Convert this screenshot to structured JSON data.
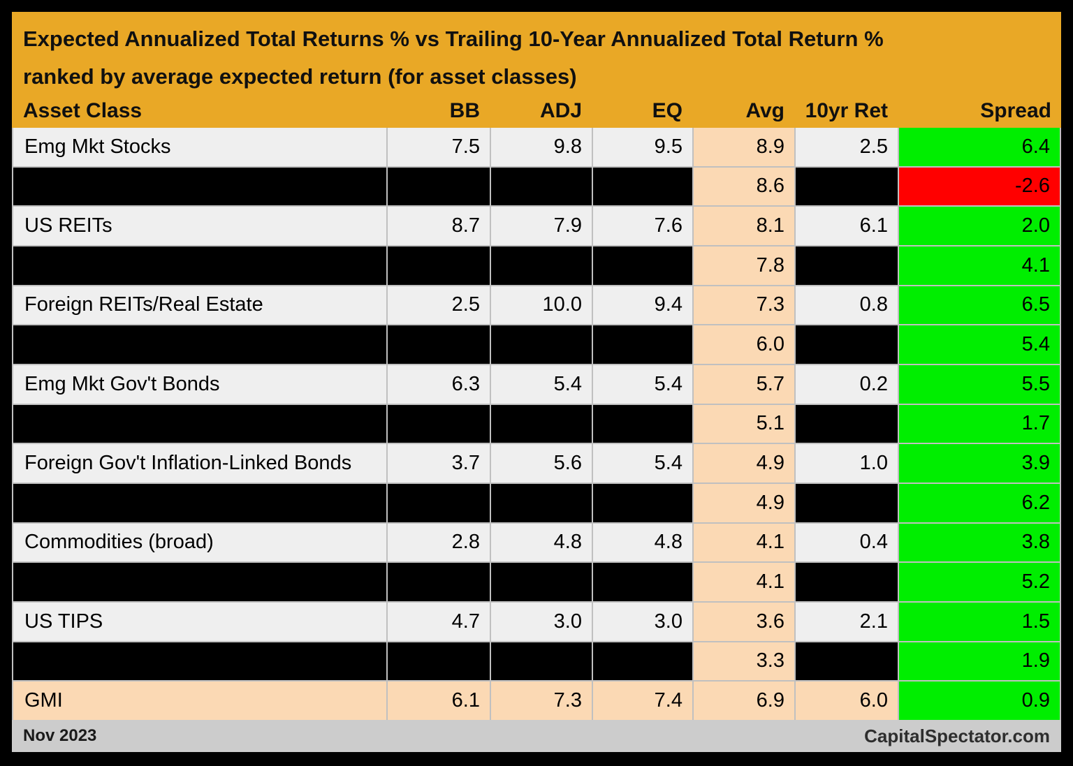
{
  "header": {
    "title_line1": "Expected Annualized Total Returns % vs Trailing 10-Year Annualized Total Return %",
    "title_line2": "ranked by average expected return (for asset classes)"
  },
  "table": {
    "columns": [
      "Asset Class",
      "BB",
      "ADJ",
      "EQ",
      "Avg",
      "10yr Ret",
      "Spread"
    ],
    "rows": [
      {
        "variant": "normal",
        "asset": "Emg Mkt Stocks",
        "bb": "7.5",
        "adj": "9.8",
        "eq": "9.5",
        "avg": "8.9",
        "ret10": "2.5",
        "spread": "6.4",
        "spread_variant": "green"
      },
      {
        "variant": "blackout",
        "asset": "",
        "bb": "",
        "adj": "",
        "eq": "",
        "avg": "8.6",
        "ret10": "",
        "spread": "-2.6",
        "spread_variant": "red"
      },
      {
        "variant": "normal",
        "asset": "US REITs",
        "bb": "8.7",
        "adj": "7.9",
        "eq": "7.6",
        "avg": "8.1",
        "ret10": "6.1",
        "spread": "2.0",
        "spread_variant": "green"
      },
      {
        "variant": "blackout",
        "asset": "",
        "bb": "",
        "adj": "",
        "eq": "",
        "avg": "7.8",
        "ret10": "",
        "spread": "4.1",
        "spread_variant": "green"
      },
      {
        "variant": "normal",
        "asset": "Foreign REITs/Real Estate",
        "bb": "2.5",
        "adj": "10.0",
        "eq": "9.4",
        "avg": "7.3",
        "ret10": "0.8",
        "spread": "6.5",
        "spread_variant": "green"
      },
      {
        "variant": "blackout",
        "asset": "",
        "bb": "",
        "adj": "",
        "eq": "",
        "avg": "6.0",
        "ret10": "",
        "spread": "5.4",
        "spread_variant": "green"
      },
      {
        "variant": "normal",
        "asset": "Emg Mkt Gov't Bonds",
        "bb": "6.3",
        "adj": "5.4",
        "eq": "5.4",
        "avg": "5.7",
        "ret10": "0.2",
        "spread": "5.5",
        "spread_variant": "green"
      },
      {
        "variant": "blackout",
        "asset": "",
        "bb": "",
        "adj": "",
        "eq": "",
        "avg": "5.1",
        "ret10": "",
        "spread": "1.7",
        "spread_variant": "green"
      },
      {
        "variant": "normal",
        "asset": "Foreign Gov't Inflation-Linked Bonds",
        "bb": "3.7",
        "adj": "5.6",
        "eq": "5.4",
        "avg": "4.9",
        "ret10": "1.0",
        "spread": "3.9",
        "spread_variant": "green"
      },
      {
        "variant": "blackout",
        "asset": "",
        "bb": "",
        "adj": "",
        "eq": "",
        "avg": "4.9",
        "ret10": "",
        "spread": "6.2",
        "spread_variant": "green"
      },
      {
        "variant": "normal",
        "asset": "Commodities (broad)",
        "bb": "2.8",
        "adj": "4.8",
        "eq": "4.8",
        "avg": "4.1",
        "ret10": "0.4",
        "spread": "3.8",
        "spread_variant": "green"
      },
      {
        "variant": "blackout",
        "asset": "",
        "bb": "",
        "adj": "",
        "eq": "",
        "avg": "4.1",
        "ret10": "",
        "spread": "5.2",
        "spread_variant": "green"
      },
      {
        "variant": "normal",
        "asset": "US TIPS",
        "bb": "4.7",
        "adj": "3.0",
        "eq": "3.0",
        "avg": "3.6",
        "ret10": "2.1",
        "spread": "1.5",
        "spread_variant": "green"
      },
      {
        "variant": "blackout",
        "asset": "",
        "bb": "",
        "adj": "",
        "eq": "",
        "avg": "3.3",
        "ret10": "",
        "spread": "1.9",
        "spread_variant": "green"
      },
      {
        "variant": "gmi",
        "asset": "GMI",
        "bb": "6.1",
        "adj": "7.3",
        "eq": "7.4",
        "avg": "6.9",
        "ret10": "6.0",
        "spread": "0.9",
        "spread_variant": "green"
      }
    ]
  },
  "footer": {
    "left": "Nov 2023",
    "right": "CapitalSpectator.com"
  },
  "colors": {
    "gold": "#E9A826",
    "peach": "#FBD9B4",
    "green": "#00EE00",
    "red": "#FF0000",
    "row-light": "#EFEFEF",
    "row-black": "#000000",
    "gridline": "#C0C0C0",
    "footer-bg": "#CCCCCC",
    "frame": "#000000"
  },
  "chart_data": {
    "type": "table",
    "title": "Expected Annualized Total Returns % vs Trailing 10-Year Annualized Total Return % ranked by average expected return (for asset classes)",
    "columns": [
      "Asset Class",
      "BB",
      "ADJ",
      "EQ",
      "Avg",
      "10yr Ret",
      "Spread"
    ],
    "rows": [
      [
        "Emg Mkt Stocks",
        7.5,
        9.8,
        9.5,
        8.9,
        2.5,
        6.4
      ],
      [
        null,
        null,
        null,
        null,
        8.6,
        null,
        -2.6
      ],
      [
        "US REITs",
        8.7,
        7.9,
        7.6,
        8.1,
        6.1,
        2.0
      ],
      [
        null,
        null,
        null,
        null,
        7.8,
        null,
        4.1
      ],
      [
        "Foreign REITs/Real Estate",
        2.5,
        10.0,
        9.4,
        7.3,
        0.8,
        6.5
      ],
      [
        null,
        null,
        null,
        null,
        6.0,
        null,
        5.4
      ],
      [
        "Emg Mkt Gov't Bonds",
        6.3,
        5.4,
        5.4,
        5.7,
        0.2,
        5.5
      ],
      [
        null,
        null,
        null,
        null,
        5.1,
        null,
        1.7
      ],
      [
        "Foreign Gov't Inflation-Linked Bonds",
        3.7,
        5.6,
        5.4,
        4.9,
        1.0,
        3.9
      ],
      [
        null,
        null,
        null,
        null,
        4.9,
        null,
        6.2
      ],
      [
        "Commodities (broad)",
        2.8,
        4.8,
        4.8,
        4.1,
        0.4,
        3.8
      ],
      [
        null,
        null,
        null,
        null,
        4.1,
        null,
        5.2
      ],
      [
        "US TIPS",
        4.7,
        3.0,
        3.0,
        3.6,
        2.1,
        1.5
      ],
      [
        null,
        null,
        null,
        null,
        3.3,
        null,
        1.9
      ],
      [
        "GMI",
        6.1,
        7.3,
        7.4,
        6.9,
        6.0,
        0.9
      ]
    ],
    "notes": "Blacked-out rows hide Asset Class, BB, ADJ, EQ and 10yr Ret values; only Avg and Spread are visible. Spread is green when positive, red when negative. GMI row is highlighted peach.",
    "legend_position": "none",
    "grid": true
  }
}
